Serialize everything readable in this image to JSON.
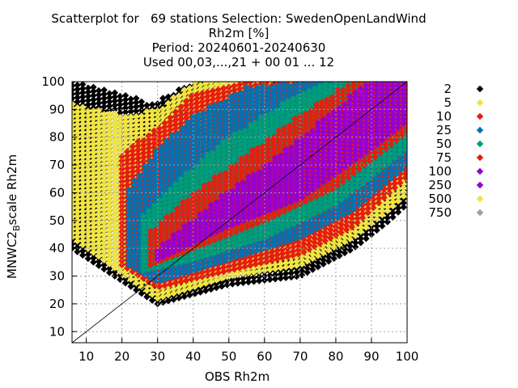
{
  "chart_data": {
    "type": "scatter",
    "title_lines": [
      "Scatterplot for   69 stations Selection: SwedenOpenLandWind",
      "Rh2m [%]",
      "Period: 20240601-20240630",
      "Used 00,03,...,21 + 00 01 ... 12"
    ],
    "xlabel": "OBS Rh2m",
    "ylabel_main": "MNWC2",
    "ylabel_sub": "B",
    "ylabel_tail": "scale Rh2m",
    "xlim": [
      6,
      100
    ],
    "ylim": [
      6,
      100
    ],
    "x_ticks": [
      10,
      20,
      30,
      40,
      50,
      60,
      70,
      80,
      90,
      100
    ],
    "y_ticks": [
      10,
      20,
      30,
      40,
      50,
      60,
      70,
      80,
      90,
      100
    ],
    "grid": true,
    "diagonal": true,
    "legend_position": "right",
    "density_bins": [
      {
        "label": "2",
        "color": "#000000"
      },
      {
        "label": "5",
        "color": "#f0e442"
      },
      {
        "label": "10",
        "color": "#e51e10"
      },
      {
        "label": "25",
        "color": "#0072b2"
      },
      {
        "label": "50",
        "color": "#009e73"
      },
      {
        "label": "75",
        "color": "#e51e10"
      },
      {
        "label": "100",
        "color": "#9400d3"
      },
      {
        "label": "250",
        "color": "#9400d3"
      },
      {
        "label": "500",
        "color": "#f0e442"
      },
      {
        "label": "750",
        "color": "#a0a0a0"
      }
    ],
    "density_bands": [
      {
        "level": "2",
        "lower": [
          [
            6,
            40
          ],
          [
            30,
            20
          ],
          [
            50,
            27
          ],
          [
            70,
            30
          ],
          [
            85,
            40
          ],
          [
            95,
            50
          ],
          [
            100,
            56
          ]
        ],
        "upper": [
          [
            6,
            100
          ],
          [
            20,
            96
          ],
          [
            28,
            92
          ],
          [
            40,
            100
          ]
        ]
      },
      {
        "level": "5",
        "lower": [
          [
            6,
            44
          ],
          [
            30,
            22
          ],
          [
            50,
            30
          ],
          [
            70,
            34
          ],
          [
            85,
            44
          ],
          [
            95,
            54
          ],
          [
            100,
            60
          ]
        ],
        "upper": [
          [
            6,
            92
          ],
          [
            20,
            88
          ],
          [
            30,
            90
          ],
          [
            40,
            100
          ]
        ]
      },
      {
        "level": "10",
        "lower": [
          [
            20,
            34
          ],
          [
            30,
            26
          ],
          [
            50,
            32
          ],
          [
            70,
            38
          ],
          [
            85,
            48
          ],
          [
            100,
            66
          ]
        ],
        "upper": [
          [
            20,
            74
          ],
          [
            30,
            84
          ],
          [
            40,
            96
          ],
          [
            55,
            100
          ]
        ]
      },
      {
        "level": "25",
        "lower": [
          [
            22,
            34
          ],
          [
            30,
            28
          ],
          [
            50,
            36
          ],
          [
            70,
            44
          ],
          [
            85,
            54
          ],
          [
            100,
            70
          ]
        ],
        "upper": [
          [
            22,
            62
          ],
          [
            30,
            76
          ],
          [
            40,
            88
          ],
          [
            55,
            98
          ],
          [
            72,
            100
          ]
        ]
      },
      {
        "level": "50",
        "lower": [
          [
            26,
            32
          ],
          [
            40,
            36
          ],
          [
            60,
            44
          ],
          [
            80,
            56
          ],
          [
            100,
            76
          ]
        ],
        "upper": [
          [
            26,
            52
          ],
          [
            35,
            64
          ],
          [
            50,
            80
          ],
          [
            65,
            92
          ],
          [
            78,
            100
          ]
        ]
      },
      {
        "level": "75",
        "lower": [
          [
            28,
            34
          ],
          [
            40,
            40
          ],
          [
            60,
            50
          ],
          [
            80,
            62
          ],
          [
            100,
            82
          ]
        ],
        "upper": [
          [
            28,
            46
          ],
          [
            40,
            60
          ],
          [
            55,
            74
          ],
          [
            70,
            88
          ],
          [
            84,
            100
          ]
        ]
      },
      {
        "level": "100",
        "lower": [
          [
            30,
            36
          ],
          [
            50,
            48
          ],
          [
            70,
            58
          ],
          [
            90,
            76
          ],
          [
            100,
            86
          ]
        ],
        "upper": [
          [
            30,
            40
          ],
          [
            45,
            56
          ],
          [
            60,
            70
          ],
          [
            80,
            90
          ],
          [
            88,
            100
          ]
        ]
      }
    ]
  }
}
